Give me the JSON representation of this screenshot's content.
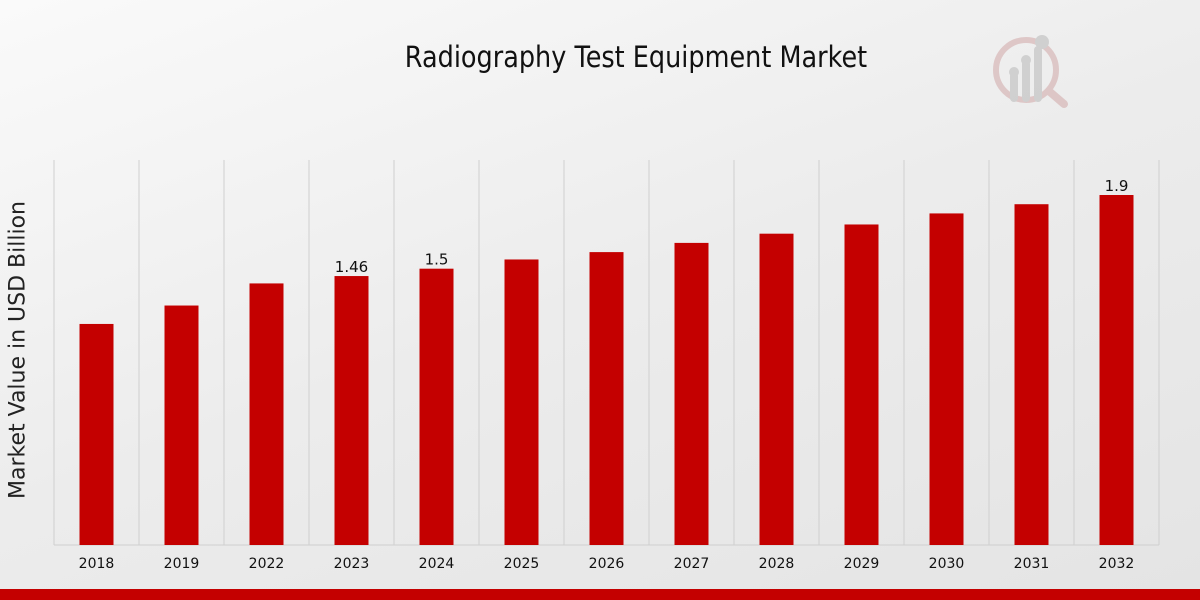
{
  "chart_data": {
    "type": "bar",
    "title": "Radiography Test Equipment Market",
    "xlabel": "",
    "ylabel": "Market Value in USD Billion",
    "categories": [
      "2018",
      "2019",
      "2022",
      "2023",
      "2024",
      "2025",
      "2026",
      "2027",
      "2028",
      "2029",
      "2030",
      "2031",
      "2032"
    ],
    "values": [
      1.2,
      1.3,
      1.42,
      1.46,
      1.5,
      1.55,
      1.59,
      1.64,
      1.69,
      1.74,
      1.8,
      1.85,
      1.9
    ],
    "data_labels": {
      "2023": "1.46",
      "2024": "1.5",
      "2032": "1.9"
    },
    "ylim": [
      0,
      2.09
    ],
    "grid": "vertical",
    "bar_color": "#c40000",
    "legend": "none"
  }
}
